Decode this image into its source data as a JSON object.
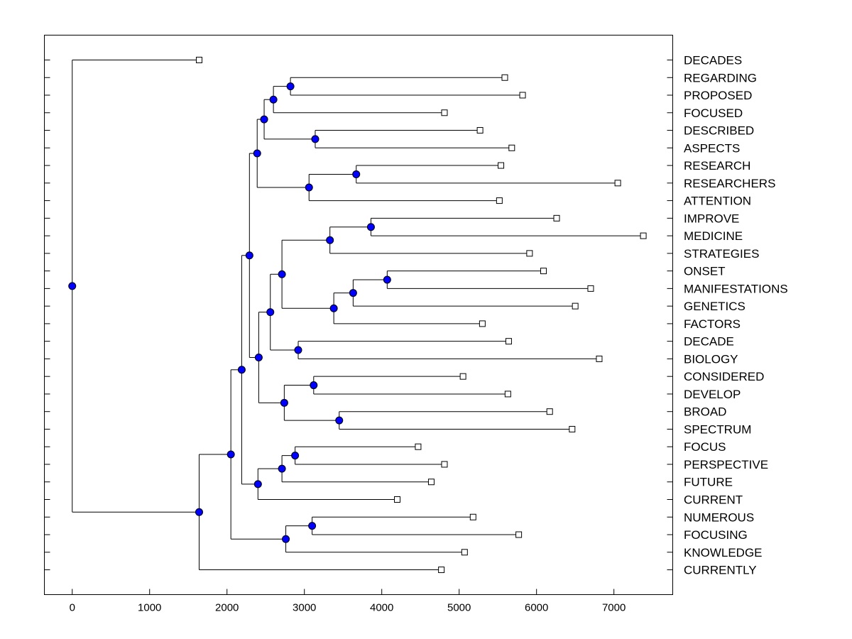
{
  "chart_data": {
    "type": "dendrogram",
    "orientation": "horizontal",
    "xlim": [
      -360,
      7760
    ],
    "xticks": [
      0,
      1000,
      2000,
      3000,
      4000,
      5000,
      6000,
      7000
    ],
    "xtick_labels": [
      "0",
      "1000",
      "2000",
      "3000",
      "4000",
      "5000",
      "6000",
      "7000"
    ],
    "leaves": [
      {
        "label": "DECADES",
        "x": 1640
      },
      {
        "label": "REGARDING",
        "x": 5590
      },
      {
        "label": "PROPOSED",
        "x": 5820
      },
      {
        "label": "FOCUSED",
        "x": 4810
      },
      {
        "label": "DESCRIBED",
        "x": 5270
      },
      {
        "label": "ASPECTS",
        "x": 5680
      },
      {
        "label": "RESEARCH",
        "x": 5540
      },
      {
        "label": "RESEARCHERS",
        "x": 7050
      },
      {
        "label": "ATTENTION",
        "x": 5520
      },
      {
        "label": "IMPROVE",
        "x": 6260
      },
      {
        "label": "MEDICINE",
        "x": 7380
      },
      {
        "label": "STRATEGIES",
        "x": 5910
      },
      {
        "label": "ONSET",
        "x": 6090
      },
      {
        "label": "MANIFESTATIONS",
        "x": 6700
      },
      {
        "label": "GENETICS",
        "x": 6500
      },
      {
        "label": "FACTORS",
        "x": 5300
      },
      {
        "label": "DECADE",
        "x": 5640
      },
      {
        "label": "BIOLOGY",
        "x": 6810
      },
      {
        "label": "CONSIDERED",
        "x": 5050
      },
      {
        "label": "DEVELOP",
        "x": 5630
      },
      {
        "label": "BROAD",
        "x": 6170
      },
      {
        "label": "SPECTRUM",
        "x": 6460
      },
      {
        "label": "FOCUS",
        "x": 4470
      },
      {
        "label": "PERSPECTIVE",
        "x": 4810
      },
      {
        "label": "FUTURE",
        "x": 4640
      },
      {
        "label": "CURRENT",
        "x": 4200
      },
      {
        "label": "NUMEROUS",
        "x": 5180
      },
      {
        "label": "FOCUSING",
        "x": 5770
      },
      {
        "label": "KNOWLEDGE",
        "x": 5070
      },
      {
        "label": "CURRENTLY",
        "x": 4770
      }
    ],
    "merges": [
      {
        "id": "n1",
        "x": 2820,
        "children": [
          "REGARDING",
          "PROPOSED"
        ]
      },
      {
        "id": "n2",
        "x": 2600,
        "children": [
          "n1",
          "FOCUSED"
        ]
      },
      {
        "id": "n3",
        "x": 3140,
        "children": [
          "DESCRIBED",
          "ASPECTS"
        ]
      },
      {
        "id": "n4",
        "x": 2480,
        "children": [
          "n2",
          "n3"
        ]
      },
      {
        "id": "n5",
        "x": 3670,
        "children": [
          "RESEARCH",
          "RESEARCHERS"
        ]
      },
      {
        "id": "n6",
        "x": 3060,
        "children": [
          "n5",
          "ATTENTION"
        ]
      },
      {
        "id": "n7",
        "x": 2390,
        "children": [
          "n4",
          "n6"
        ]
      },
      {
        "id": "n8",
        "x": 3860,
        "children": [
          "IMPROVE",
          "MEDICINE"
        ]
      },
      {
        "id": "n9",
        "x": 3330,
        "children": [
          "n8",
          "STRATEGIES"
        ]
      },
      {
        "id": "n10",
        "x": 4070,
        "children": [
          "ONSET",
          "MANIFESTATIONS"
        ]
      },
      {
        "id": "n11",
        "x": 3630,
        "children": [
          "n10",
          "GENETICS"
        ]
      },
      {
        "id": "n12",
        "x": 3380,
        "children": [
          "n11",
          "FACTORS"
        ]
      },
      {
        "id": "n13",
        "x": 2710,
        "children": [
          "n9",
          "n12"
        ]
      },
      {
        "id": "n14",
        "x": 2920,
        "children": [
          "DECADE",
          "BIOLOGY"
        ]
      },
      {
        "id": "n15",
        "x": 2560,
        "children": [
          "n13",
          "n14"
        ]
      },
      {
        "id": "n16",
        "x": 3120,
        "children": [
          "CONSIDERED",
          "DEVELOP"
        ]
      },
      {
        "id": "n17",
        "x": 3450,
        "children": [
          "BROAD",
          "SPECTRUM"
        ]
      },
      {
        "id": "n18",
        "x": 2740,
        "children": [
          "n16",
          "n17"
        ]
      },
      {
        "id": "n19",
        "x": 2410,
        "children": [
          "n15",
          "n18"
        ]
      },
      {
        "id": "n20",
        "x": 2290,
        "children": [
          "n7",
          "n19"
        ]
      },
      {
        "id": "n21",
        "x": 2880,
        "children": [
          "FOCUS",
          "PERSPECTIVE"
        ]
      },
      {
        "id": "n22",
        "x": 2710,
        "children": [
          "n21",
          "FUTURE"
        ]
      },
      {
        "id": "n23",
        "x": 2400,
        "children": [
          "n22",
          "CURRENT"
        ]
      },
      {
        "id": "n24",
        "x": 2190,
        "children": [
          "n20",
          "n23"
        ]
      },
      {
        "id": "n25",
        "x": 3100,
        "children": [
          "NUMEROUS",
          "FOCUSING"
        ]
      },
      {
        "id": "n26",
        "x": 2760,
        "children": [
          "n25",
          "KNOWLEDGE"
        ]
      },
      {
        "id": "n27",
        "x": 2050,
        "children": [
          "n24",
          "n26"
        ]
      },
      {
        "id": "n28",
        "x": 1640,
        "children": [
          "n27",
          "CURRENTLY"
        ]
      },
      {
        "id": "n29",
        "x": 0,
        "children": [
          "DECADES",
          "n28"
        ]
      }
    ],
    "colors": {
      "node_fill": "#0000ff",
      "leaf_fill": "#ffffff",
      "line": "#000000",
      "frame": "#000000"
    },
    "legend": "none",
    "grid": false
  }
}
